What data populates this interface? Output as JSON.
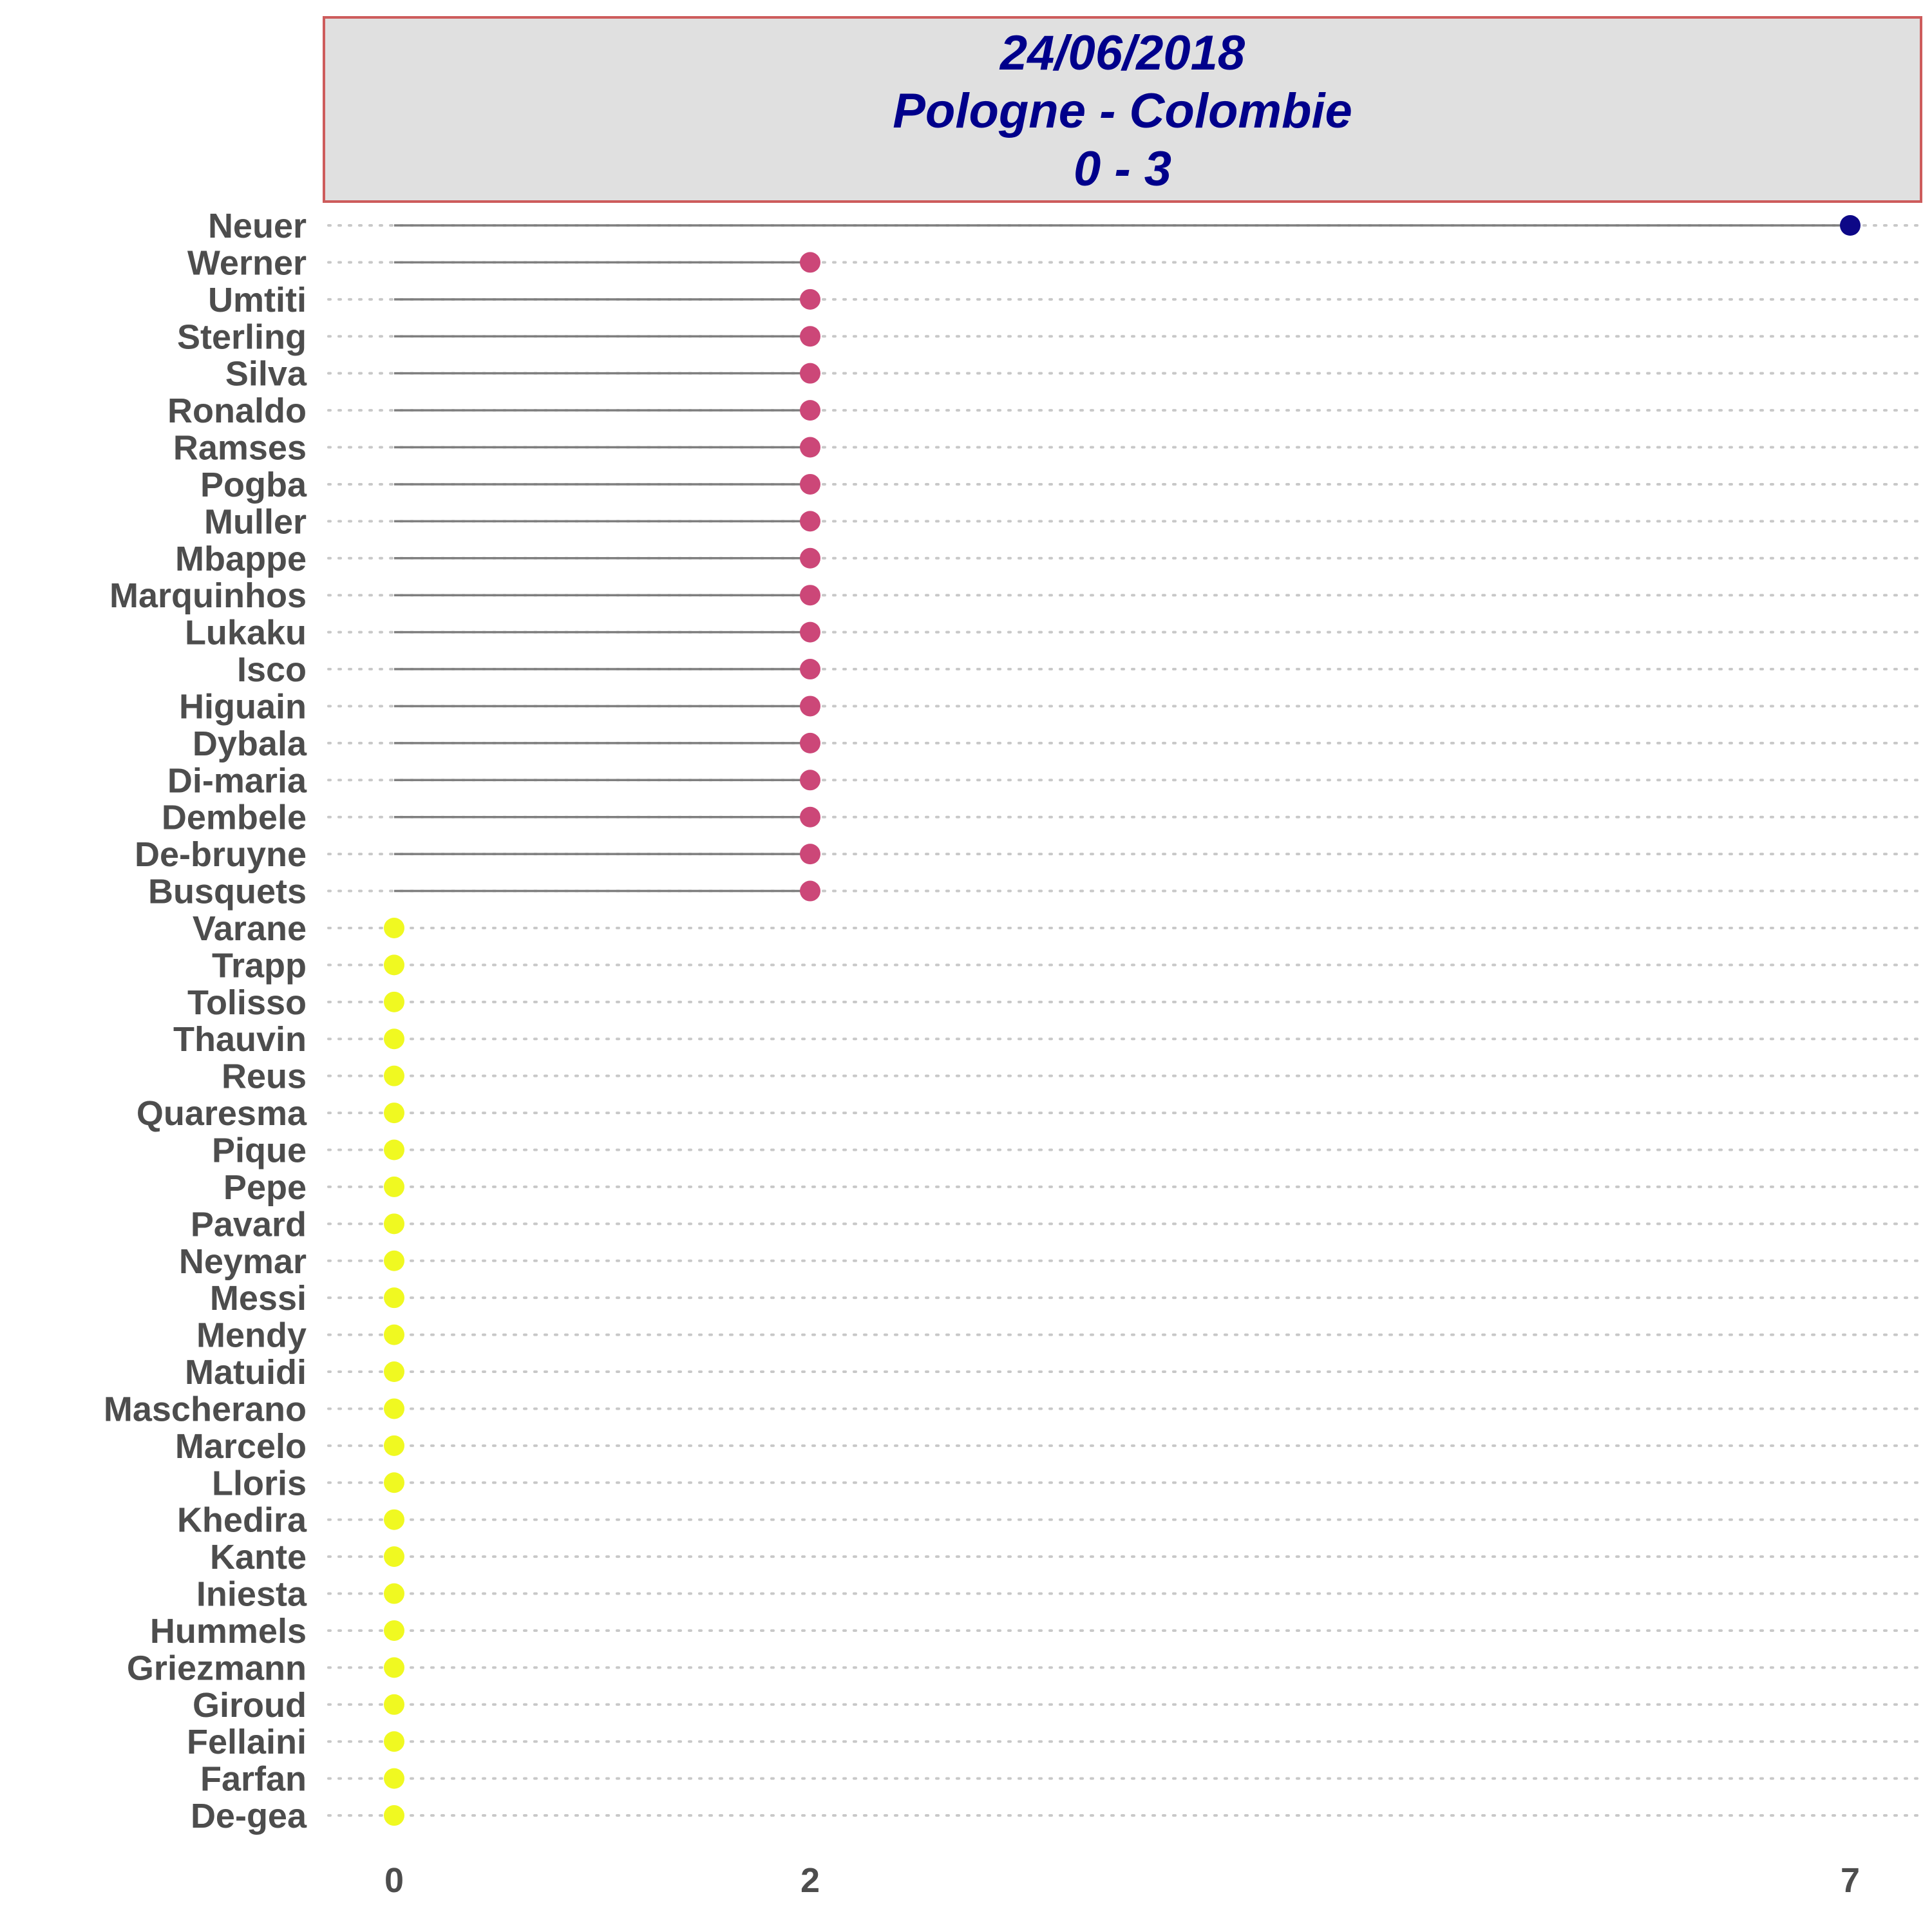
{
  "chart_data": {
    "type": "lollipop",
    "title_lines": [
      "24/06/2018",
      "Pologne - Colombie",
      "0 - 3"
    ],
    "categories": [
      "Neuer",
      "Werner",
      "Umtiti",
      "Sterling",
      "Silva",
      "Ronaldo",
      "Ramses",
      "Pogba",
      "Muller",
      "Mbappe",
      "Marquinhos",
      "Lukaku",
      "Isco",
      "Higuain",
      "Dybala",
      "Di-maria",
      "Dembele",
      "De-bruyne",
      "Busquets",
      "Varane",
      "Trapp",
      "Tolisso",
      "Thauvin",
      "Reus",
      "Quaresma",
      "Pique",
      "Pepe",
      "Pavard",
      "Neymar",
      "Messi",
      "Mendy",
      "Matuidi",
      "Mascherano",
      "Marcelo",
      "Lloris",
      "Khedira",
      "Kante",
      "Iniesta",
      "Hummels",
      "Griezmann",
      "Giroud",
      "Fellaini",
      "Farfan",
      "De-gea"
    ],
    "values": [
      7,
      2,
      2,
      2,
      2,
      2,
      2,
      2,
      2,
      2,
      2,
      2,
      2,
      2,
      2,
      2,
      2,
      2,
      2,
      0,
      0,
      0,
      0,
      0,
      0,
      0,
      0,
      0,
      0,
      0,
      0,
      0,
      0,
      0,
      0,
      0,
      0,
      0,
      0,
      0,
      0,
      0,
      0,
      0
    ],
    "x_ticks": [
      0,
      2,
      7
    ],
    "grid": "horizontal dotted",
    "colors": {
      "7": "#0D0887",
      "2": "#CC4778",
      "0": "#F0F921",
      "stem": "#7F7F7F",
      "grid": "#C8C8C8",
      "title_text": "#00008B",
      "title_bg": "#E0E0E0",
      "title_border": "#CD5C5C",
      "axis_text": "#4D4D4D"
    }
  }
}
